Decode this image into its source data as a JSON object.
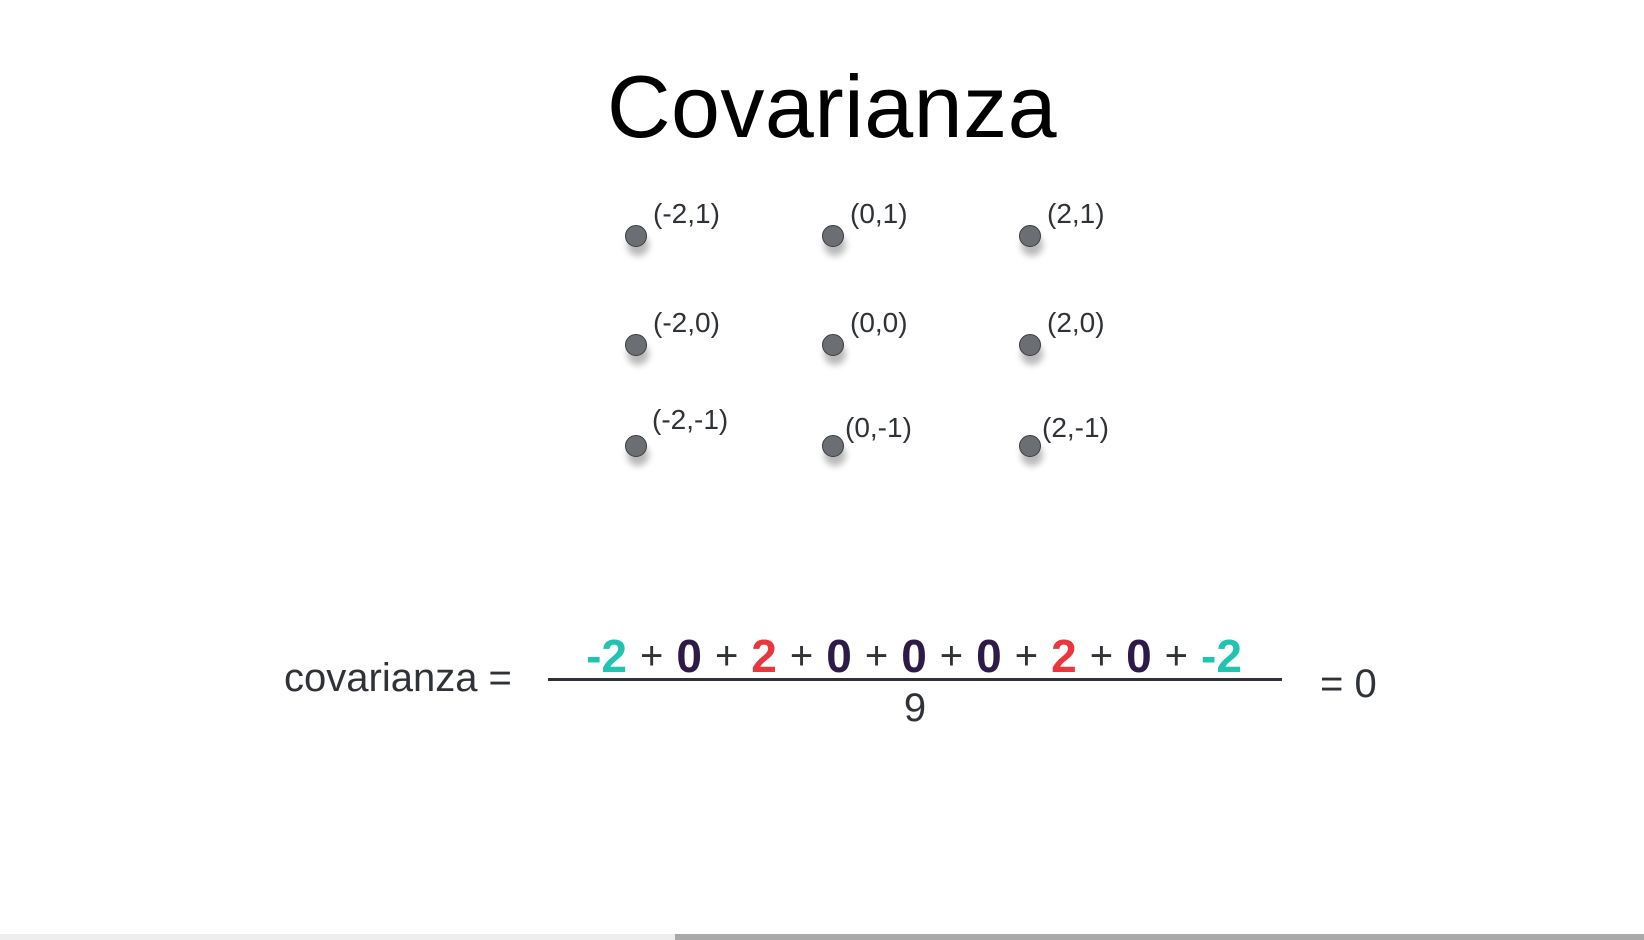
{
  "title": "Covarianza",
  "points": [
    {
      "label": "(-2,1)",
      "x": -2,
      "y": 1
    },
    {
      "label": "(0,1)",
      "x": 0,
      "y": 1
    },
    {
      "label": "(2,1)",
      "x": 2,
      "y": 1
    },
    {
      "label": "(-2,0)",
      "x": -2,
      "y": 0
    },
    {
      "label": "(0,0)",
      "x": 0,
      "y": 0
    },
    {
      "label": "(2,0)",
      "x": 2,
      "y": 0
    },
    {
      "label": "(-2,-1)",
      "x": -2,
      "y": -1
    },
    {
      "label": "(0,-1)",
      "x": 0,
      "y": -1
    },
    {
      "label": "(2,-1)",
      "x": 2,
      "y": -1
    }
  ],
  "formula": {
    "lhs": "covarianza =",
    "operator": "+",
    "terms": [
      {
        "text": "-2",
        "color": "#20c4b0"
      },
      {
        "text": "0",
        "color": "#2e1a47"
      },
      {
        "text": "2",
        "color": "#e8383d"
      },
      {
        "text": "0",
        "color": "#2e1a47"
      },
      {
        "text": "0",
        "color": "#2e1a47"
      },
      {
        "text": "0",
        "color": "#2e1a47"
      },
      {
        "text": "2",
        "color": "#e8383d"
      },
      {
        "text": "0",
        "color": "#2e1a47"
      },
      {
        "text": "-2",
        "color": "#20c4b0"
      }
    ],
    "denominator": "9",
    "result": "= 0"
  },
  "colors": {
    "point_fill": "#6b6e72",
    "text": "#2f3338"
  }
}
